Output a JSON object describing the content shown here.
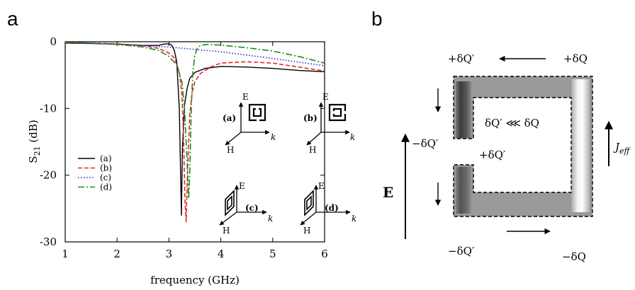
{
  "panels": {
    "a_letter": "a",
    "b_letter": "b"
  },
  "chart_data": {
    "type": "line",
    "xlabel": "frequency (GHz)",
    "ylabel_main": "S",
    "ylabel_sub": "21",
    "ylabel_unit": " (dB)",
    "xlim": [
      1,
      6
    ],
    "ylim": [
      -30,
      0
    ],
    "xticks": [
      "1",
      "2",
      "3",
      "4",
      "5",
      "6"
    ],
    "yticks": [
      "0",
      "-10",
      "-20",
      "-30"
    ],
    "grid": false,
    "legend_position": "left-middle",
    "series": [
      {
        "name": "(a)",
        "color": "#000000",
        "dash": "solid",
        "x": [
          1.0,
          1.5,
          2.0,
          2.5,
          2.8,
          2.9,
          3.0,
          3.05,
          3.1,
          3.15,
          3.2,
          3.22,
          3.24,
          3.26,
          3.3,
          3.35,
          3.4,
          3.5,
          3.7,
          4.0,
          4.5,
          5.0,
          5.5,
          6.0
        ],
        "y": [
          -0.2,
          -0.25,
          -0.35,
          -0.55,
          -0.55,
          -0.35,
          -0.3,
          -0.5,
          -1.2,
          -3.0,
          -10.0,
          -18.0,
          -26.0,
          -16.0,
          -9.5,
          -7.0,
          -5.5,
          -4.6,
          -4.0,
          -3.7,
          -3.8,
          -4.0,
          -4.3,
          -4.5
        ]
      },
      {
        "name": "(b)",
        "color": "#e8242a",
        "dash": "6,3",
        "x": [
          1.0,
          1.5,
          2.0,
          2.5,
          2.8,
          3.0,
          3.1,
          3.2,
          3.25,
          3.28,
          3.31,
          3.33,
          3.36,
          3.4,
          3.45,
          3.5,
          3.6,
          3.8,
          4.0,
          4.5,
          5.0,
          5.5,
          6.0
        ],
        "y": [
          -0.1,
          -0.2,
          -0.3,
          -0.6,
          -1.0,
          -1.7,
          -2.4,
          -4.5,
          -8.0,
          -14.0,
          -24.0,
          -27.0,
          -19.0,
          -11.0,
          -7.5,
          -6.0,
          -4.8,
          -3.8,
          -3.2,
          -3.0,
          -3.2,
          -3.8,
          -4.4
        ]
      },
      {
        "name": "(c)",
        "color": "#2222dd",
        "dash": "1.5,2.5",
        "x": [
          1.0,
          2.0,
          3.0,
          4.0,
          5.0,
          6.0
        ],
        "y": [
          -0.15,
          -0.4,
          -0.8,
          -1.5,
          -2.5,
          -3.6
        ]
      },
      {
        "name": "(d)",
        "color": "#1a8c1a",
        "dash": "9,3,2,3",
        "x": [
          1.0,
          1.5,
          2.0,
          2.5,
          2.8,
          3.0,
          3.15,
          3.25,
          3.3,
          3.35,
          3.38,
          3.4,
          3.43,
          3.46,
          3.5,
          3.55,
          3.6,
          3.7,
          4.0,
          4.5,
          5.0,
          5.5,
          6.0
        ],
        "y": [
          -0.1,
          -0.2,
          -0.4,
          -0.8,
          -1.3,
          -2.2,
          -3.5,
          -6.0,
          -10.0,
          -18.0,
          -23.5,
          -20.0,
          -10.0,
          -4.5,
          -2.0,
          -0.9,
          -0.6,
          -0.4,
          -0.5,
          -0.9,
          -1.4,
          -2.2,
          -3.2
        ]
      }
    ]
  },
  "insets": {
    "a": {
      "E": "E",
      "H": "H",
      "k": "k",
      "tag": "(a)"
    },
    "b": {
      "E": "E",
      "H": "H",
      "k": "k",
      "tag": "(b)"
    },
    "c": {
      "E": "E",
      "H": "H",
      "k": "k",
      "tag": "(c)"
    },
    "d": {
      "E": "E",
      "H": "H",
      "k": "k",
      "tag": "(d)"
    }
  },
  "diagram_b": {
    "top_left_charge": "+δQ′",
    "top_right_charge": "+δQ",
    "gap_upper_charge": "−δQ′",
    "gap_lower_charge": "+δQ′",
    "inner_relation": "δQ′ ⋘ δQ",
    "bottom_left_charge": "−δQ′",
    "bottom_right_charge": "−δQ",
    "field_label": "E",
    "current_label": "J",
    "current_sub": "eff"
  }
}
